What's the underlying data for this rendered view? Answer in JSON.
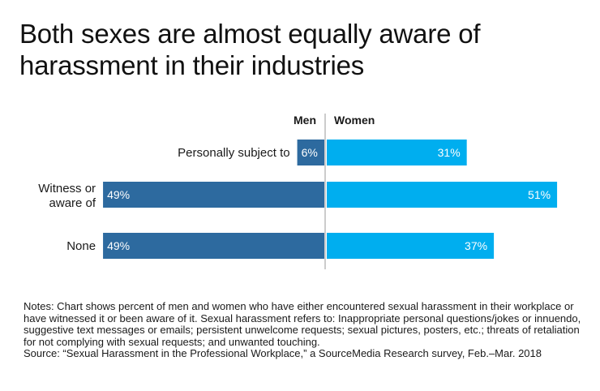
{
  "title": "Both sexes are almost equally aware of harassment in their industries",
  "chart_data": {
    "type": "bar",
    "subtype": "diverging-horizontal",
    "title": "Both sexes are almost equally aware of harassment in their industries",
    "categories": [
      "Personally subject to",
      "Witness or aware of",
      "None"
    ],
    "series": [
      {
        "name": "Men",
        "values": [
          6,
          49,
          49
        ],
        "color": "#2d6a9f",
        "direction": "left"
      },
      {
        "name": "Women",
        "values": [
          31,
          51,
          37
        ],
        "color": "#00aeef",
        "direction": "right"
      }
    ],
    "value_labels": {
      "Men": [
        "6%",
        "49%",
        "49%"
      ],
      "Women": [
        "31%",
        "51%",
        "37%"
      ]
    },
    "xlim": [
      0,
      51
    ],
    "unit": "%"
  },
  "notes": {
    "text": "Notes: Chart shows percent of men and women who have either encountered sexual harassment in their workplace or have witnessed it or been aware of it. Sexual harassment refers to: Inappropriate personal questions/jokes or innuendo, suggestive text messages or emails; persistent unwelcome requests; sexual pictures, posters, etc.; threats of retaliation for not complying with sexual requests; and unwanted touching.",
    "source": "Source: “Sexual Harassment in the Professional Workplace,” a SourceMedia Research survey, Feb.–Mar. 2018"
  }
}
